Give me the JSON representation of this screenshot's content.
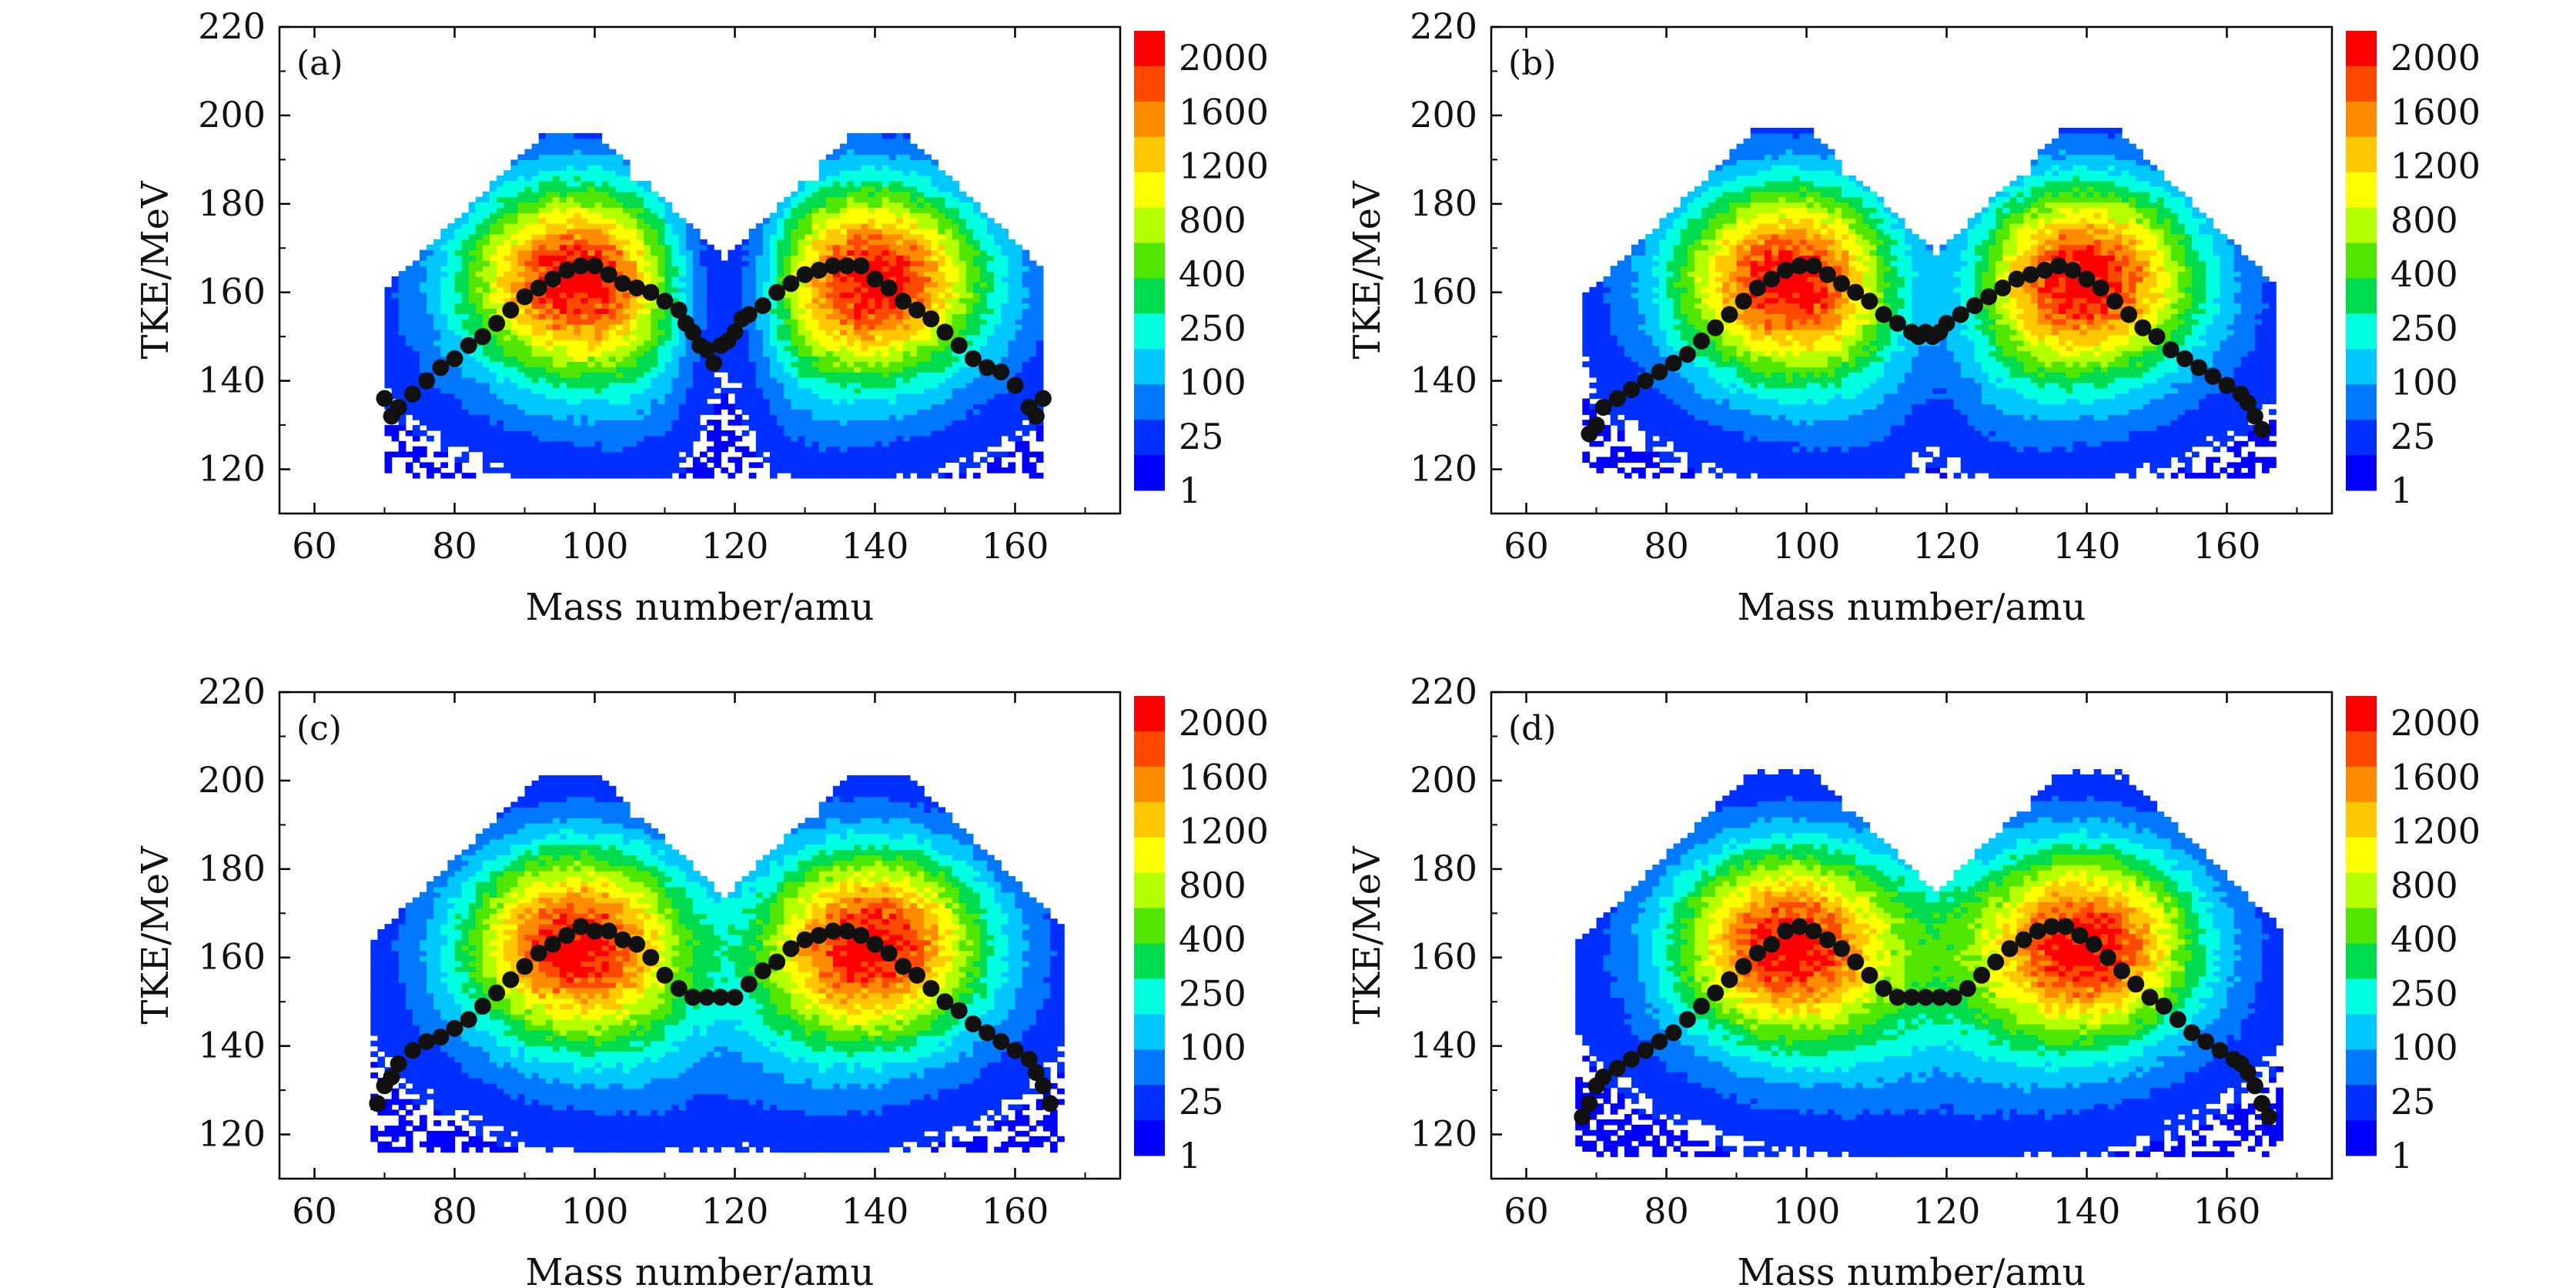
{
  "colorbar": {
    "labels": [
      "2000",
      "1600",
      "1200",
      "800",
      "400",
      "250",
      "100",
      "25",
      "1"
    ],
    "colors": [
      "#ff0000",
      "#ff4800",
      "#ff8c00",
      "#ffc800",
      "#ffff00",
      "#b4ff00",
      "#50e600",
      "#00dc50",
      "#00ffe0",
      "#00c8ff",
      "#0078ff",
      "#0030ff",
      "#0000ff"
    ]
  },
  "chart_data": [
    {
      "type": "heatmap",
      "panel_label": "(a)",
      "xlabel": "Mass number/amu",
      "ylabel": "TKE/MeV",
      "xlim": [
        55,
        175
      ],
      "ylim": [
        110,
        220
      ],
      "xticks": [
        60,
        80,
        100,
        120,
        140,
        160
      ],
      "yticks": [
        120,
        140,
        160,
        180,
        200,
        220
      ],
      "density": {
        "max_tke": 195,
        "min_tke": 118,
        "x_range": [
          70,
          163
        ],
        "gap_strength": 0.85
      },
      "mean_tke_points": [
        [
          70,
          136
        ],
        [
          71,
          132
        ],
        [
          72,
          134
        ],
        [
          74,
          137
        ],
        [
          76,
          140
        ],
        [
          78,
          143
        ],
        [
          80,
          145
        ],
        [
          82,
          148
        ],
        [
          84,
          150
        ],
        [
          86,
          153
        ],
        [
          88,
          156
        ],
        [
          90,
          159
        ],
        [
          92,
          161
        ],
        [
          94,
          163
        ],
        [
          96,
          165
        ],
        [
          98,
          166
        ],
        [
          100,
          166
        ],
        [
          102,
          164
        ],
        [
          104,
          162
        ],
        [
          106,
          161
        ],
        [
          108,
          160
        ],
        [
          110,
          158
        ],
        [
          112,
          156
        ],
        [
          113,
          153
        ],
        [
          114,
          151
        ],
        [
          115,
          148
        ],
        [
          116,
          147
        ],
        [
          117,
          144
        ],
        [
          118,
          148
        ],
        [
          119,
          149
        ],
        [
          120,
          151
        ],
        [
          121,
          154
        ],
        [
          122,
          155
        ],
        [
          124,
          157
        ],
        [
          126,
          160
        ],
        [
          128,
          162
        ],
        [
          130,
          164
        ],
        [
          132,
          165
        ],
        [
          134,
          166
        ],
        [
          136,
          166
        ],
        [
          138,
          166
        ],
        [
          140,
          163
        ],
        [
          142,
          161
        ],
        [
          144,
          158
        ],
        [
          146,
          156
        ],
        [
          148,
          154
        ],
        [
          150,
          151
        ],
        [
          152,
          148
        ],
        [
          154,
          145
        ],
        [
          156,
          143
        ],
        [
          158,
          142
        ],
        [
          160,
          139
        ],
        [
          162,
          134
        ],
        [
          163,
          132
        ],
        [
          164,
          136
        ]
      ]
    },
    {
      "type": "heatmap",
      "panel_label": "(b)",
      "xlabel": "Mass number/amu",
      "ylabel": "TKE/MeV",
      "xlim": [
        55,
        175
      ],
      "ylim": [
        110,
        220
      ],
      "xticks": [
        60,
        80,
        100,
        120,
        140,
        160
      ],
      "yticks": [
        120,
        140,
        160,
        180,
        200,
        220
      ],
      "density": {
        "max_tke": 196,
        "min_tke": 118,
        "x_range": [
          68,
          166
        ],
        "gap_strength": 0.55
      },
      "mean_tke_points": [
        [
          69,
          128
        ],
        [
          70,
          130
        ],
        [
          71,
          134
        ],
        [
          73,
          136
        ],
        [
          75,
          138
        ],
        [
          77,
          140
        ],
        [
          79,
          142
        ],
        [
          81,
          144
        ],
        [
          83,
          146
        ],
        [
          85,
          149
        ],
        [
          87,
          152
        ],
        [
          89,
          155
        ],
        [
          91,
          158
        ],
        [
          93,
          161
        ],
        [
          95,
          163
        ],
        [
          97,
          165
        ],
        [
          99,
          166
        ],
        [
          101,
          166
        ],
        [
          103,
          164
        ],
        [
          105,
          162
        ],
        [
          107,
          160
        ],
        [
          109,
          158
        ],
        [
          111,
          155
        ],
        [
          113,
          153
        ],
        [
          115,
          151
        ],
        [
          116,
          150
        ],
        [
          117,
          151
        ],
        [
          118,
          150
        ],
        [
          119,
          151
        ],
        [
          120,
          153
        ],
        [
          122,
          155
        ],
        [
          124,
          157
        ],
        [
          126,
          159
        ],
        [
          128,
          161
        ],
        [
          130,
          163
        ],
        [
          132,
          164
        ],
        [
          134,
          165
        ],
        [
          136,
          166
        ],
        [
          138,
          165
        ],
        [
          140,
          163
        ],
        [
          142,
          161
        ],
        [
          144,
          158
        ],
        [
          146,
          155
        ],
        [
          148,
          152
        ],
        [
          150,
          150
        ],
        [
          152,
          147
        ],
        [
          154,
          145
        ],
        [
          156,
          143
        ],
        [
          158,
          141
        ],
        [
          160,
          139
        ],
        [
          162,
          137
        ],
        [
          163,
          135
        ],
        [
          164,
          132
        ],
        [
          165,
          129
        ]
      ]
    },
    {
      "type": "heatmap",
      "panel_label": "(c)",
      "xlabel": "Mass number/amu",
      "ylabel": "TKE/MeV",
      "xlim": [
        55,
        175
      ],
      "ylim": [
        110,
        220
      ],
      "xticks": [
        60,
        80,
        100,
        120,
        140,
        160
      ],
      "yticks": [
        120,
        140,
        160,
        180,
        200,
        220
      ],
      "density": {
        "max_tke": 201,
        "min_tke": 116,
        "x_range": [
          68,
          166
        ],
        "gap_strength": 0.3
      },
      "mean_tke_points": [
        [
          69,
          127
        ],
        [
          70,
          131
        ],
        [
          71,
          133
        ],
        [
          72,
          136
        ],
        [
          74,
          139
        ],
        [
          76,
          141
        ],
        [
          78,
          142
        ],
        [
          80,
          144
        ],
        [
          82,
          146
        ],
        [
          84,
          149
        ],
        [
          86,
          152
        ],
        [
          88,
          155
        ],
        [
          90,
          158
        ],
        [
          92,
          161
        ],
        [
          94,
          163
        ],
        [
          96,
          165
        ],
        [
          98,
          167
        ],
        [
          100,
          166
        ],
        [
          102,
          166
        ],
        [
          104,
          164
        ],
        [
          106,
          163
        ],
        [
          108,
          160
        ],
        [
          110,
          156
        ],
        [
          112,
          153
        ],
        [
          114,
          151
        ],
        [
          116,
          151
        ],
        [
          118,
          151
        ],
        [
          120,
          151
        ],
        [
          122,
          154
        ],
        [
          124,
          157
        ],
        [
          126,
          159
        ],
        [
          128,
          162
        ],
        [
          130,
          164
        ],
        [
          132,
          165
        ],
        [
          134,
          166
        ],
        [
          136,
          166
        ],
        [
          138,
          165
        ],
        [
          140,
          163
        ],
        [
          142,
          161
        ],
        [
          144,
          158
        ],
        [
          146,
          156
        ],
        [
          148,
          153
        ],
        [
          150,
          150
        ],
        [
          152,
          148
        ],
        [
          154,
          145
        ],
        [
          156,
          143
        ],
        [
          158,
          141
        ],
        [
          160,
          139
        ],
        [
          162,
          137
        ],
        [
          163,
          134
        ],
        [
          164,
          131
        ],
        [
          165,
          127
        ]
      ]
    },
    {
      "type": "heatmap",
      "panel_label": "(d)",
      "xlabel": "Mass number/amu",
      "ylabel": "TKE/MeV",
      "xlim": [
        55,
        175
      ],
      "ylim": [
        110,
        220
      ],
      "xticks": [
        60,
        80,
        100,
        120,
        140,
        160
      ],
      "yticks": [
        120,
        140,
        160,
        180,
        200,
        220
      ],
      "density": {
        "max_tke": 202,
        "min_tke": 115,
        "x_range": [
          67,
          167
        ],
        "gap_strength": 0.1
      },
      "mean_tke_points": [
        [
          68,
          124
        ],
        [
          69,
          127
        ],
        [
          70,
          131
        ],
        [
          71,
          133
        ],
        [
          73,
          135
        ],
        [
          75,
          137
        ],
        [
          77,
          139
        ],
        [
          79,
          141
        ],
        [
          81,
          143
        ],
        [
          83,
          146
        ],
        [
          85,
          149
        ],
        [
          87,
          152
        ],
        [
          89,
          155
        ],
        [
          91,
          158
        ],
        [
          93,
          161
        ],
        [
          95,
          163
        ],
        [
          97,
          166
        ],
        [
          99,
          167
        ],
        [
          101,
          166
        ],
        [
          103,
          164
        ],
        [
          105,
          162
        ],
        [
          107,
          159
        ],
        [
          109,
          156
        ],
        [
          111,
          153
        ],
        [
          113,
          151
        ],
        [
          115,
          151
        ],
        [
          117,
          151
        ],
        [
          119,
          151
        ],
        [
          121,
          151
        ],
        [
          123,
          153
        ],
        [
          125,
          156
        ],
        [
          127,
          159
        ],
        [
          129,
          162
        ],
        [
          131,
          164
        ],
        [
          133,
          166
        ],
        [
          135,
          167
        ],
        [
          137,
          167
        ],
        [
          139,
          165
        ],
        [
          141,
          163
        ],
        [
          143,
          160
        ],
        [
          145,
          157
        ],
        [
          147,
          154
        ],
        [
          149,
          151
        ],
        [
          151,
          149
        ],
        [
          153,
          146
        ],
        [
          155,
          143
        ],
        [
          157,
          141
        ],
        [
          159,
          139
        ],
        [
          161,
          137
        ],
        [
          162,
          136
        ],
        [
          163,
          134
        ],
        [
          164,
          131
        ],
        [
          165,
          127
        ],
        [
          166,
          124
        ]
      ]
    }
  ]
}
